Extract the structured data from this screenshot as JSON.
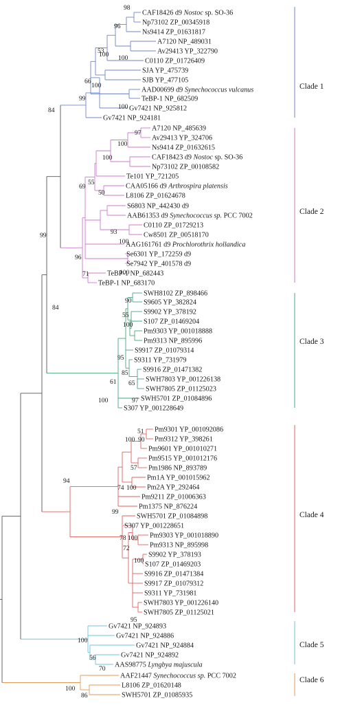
{
  "clade_colors": {
    "clade1": "#6f86c9",
    "clade2": "#cc79cf",
    "clade3": "#4aa57d",
    "clade4": "#e0605e",
    "clade5": "#6cc6e0",
    "clade6": "#e39a55",
    "backbone": "#555555"
  },
  "clades": [
    {
      "id": "clade1",
      "label": "Clade 1"
    },
    {
      "id": "clade2",
      "label": "Clade 2"
    },
    {
      "id": "clade3",
      "label": "Clade 3"
    },
    {
      "id": "clade4",
      "label": "Clade 4"
    },
    {
      "id": "clade5",
      "label": "Clade 5"
    },
    {
      "id": "clade6",
      "label": "Clade 6"
    }
  ],
  "leaves": [
    {
      "id": "L1",
      "clade": "clade1",
      "parts": [
        {
          "t": "CAF18426 d9 "
        },
        {
          "t": "Nostoc",
          "i": true
        },
        {
          "t": " sp. SO-36"
        }
      ]
    },
    {
      "id": "L2",
      "clade": "clade1",
      "parts": [
        {
          "t": "Np73102 ZP_00345918"
        }
      ]
    },
    {
      "id": "L3",
      "clade": "clade1",
      "parts": [
        {
          "t": "Ns9414 ZP_01631817"
        }
      ]
    },
    {
      "id": "L4",
      "clade": "clade1",
      "parts": [
        {
          "t": "A7120 NP_489031"
        }
      ]
    },
    {
      "id": "L5",
      "clade": "clade1",
      "parts": [
        {
          "t": "Av29413 YP_322790"
        }
      ]
    },
    {
      "id": "L6",
      "clade": "clade1",
      "parts": [
        {
          "t": "C0110 ZP_01726409"
        }
      ]
    },
    {
      "id": "L7",
      "clade": "clade1",
      "parts": [
        {
          "t": "SJA YP_475739"
        }
      ]
    },
    {
      "id": "L8",
      "clade": "clade1",
      "parts": [
        {
          "t": "SJB YP_477105"
        }
      ]
    },
    {
      "id": "L9",
      "clade": "clade1",
      "parts": [
        {
          "t": "AAD00699 d9 "
        },
        {
          "t": "Synechococcus vulcanus",
          "i": true
        }
      ]
    },
    {
      "id": "L10",
      "clade": "clade1",
      "parts": [
        {
          "t": "TeBP-1 NP_682509"
        }
      ]
    },
    {
      "id": "L11",
      "clade": "clade1",
      "parts": [
        {
          "t": "Gv7421 NP_925812"
        }
      ]
    },
    {
      "id": "L12",
      "clade": "clade1",
      "parts": [
        {
          "t": "Gv7421 NP_924181"
        }
      ]
    },
    {
      "id": "L13",
      "clade": "clade2",
      "parts": [
        {
          "t": "A7120 NP_485639"
        }
      ]
    },
    {
      "id": "L14",
      "clade": "clade2",
      "parts": [
        {
          "t": "Av29413 YP_324706"
        }
      ]
    },
    {
      "id": "L15",
      "clade": "clade2",
      "parts": [
        {
          "t": "Ns9414 ZP_01632615"
        }
      ]
    },
    {
      "id": "L16",
      "clade": "clade2",
      "parts": [
        {
          "t": "CAF18423 d9 "
        },
        {
          "t": "Nostoc",
          "i": true
        },
        {
          "t": " sp. SO-36"
        }
      ]
    },
    {
      "id": "L17",
      "clade": "clade2",
      "parts": [
        {
          "t": "Np73102 ZP_00108582"
        }
      ]
    },
    {
      "id": "L18",
      "clade": "clade2",
      "parts": [
        {
          "t": "Te101 YP_721205"
        }
      ]
    },
    {
      "id": "L19",
      "clade": "clade2",
      "parts": [
        {
          "t": "CAA05166 d9 "
        },
        {
          "t": "Arthrospira platensis",
          "i": true
        }
      ]
    },
    {
      "id": "L20",
      "clade": "clade2",
      "parts": [
        {
          "t": "L8106 ZP_01624678"
        }
      ]
    },
    {
      "id": "L21",
      "clade": "clade2",
      "parts": [
        {
          "t": "S6803 NP_442430 d9"
        }
      ]
    },
    {
      "id": "L22",
      "clade": "clade2",
      "parts": [
        {
          "t": "AAB61353 d9 "
        },
        {
          "t": "Synechococcus sp.",
          "i": true
        },
        {
          "t": " PCC 7002"
        }
      ]
    },
    {
      "id": "L23",
      "clade": "clade2",
      "parts": [
        {
          "t": "C0110 ZP_01729213"
        }
      ]
    },
    {
      "id": "L24",
      "clade": "clade2",
      "parts": [
        {
          "t": "Cw8501 ZP_00518170"
        }
      ]
    },
    {
      "id": "L25",
      "clade": "clade2",
      "parts": [
        {
          "t": "AAG161761 d9 "
        },
        {
          "t": "Prochlorothrix hollandica",
          "i": true
        }
      ]
    },
    {
      "id": "L26",
      "clade": "clade2",
      "parts": [
        {
          "t": "Se6301 YP_172259 d9"
        }
      ]
    },
    {
      "id": "L27",
      "clade": "clade2",
      "parts": [
        {
          "t": "Se7942 YP_401578 d9"
        }
      ]
    },
    {
      "id": "L28",
      "clade": "clade2",
      "parts": [
        {
          "t": "TeBP-1 NP_682443"
        }
      ]
    },
    {
      "id": "L29",
      "clade": "clade2",
      "parts": [
        {
          "t": "TeBP-1 NP_683170"
        }
      ]
    },
    {
      "id": "L30",
      "clade": "clade3",
      "parts": [
        {
          "t": "SWH8102 ZP_898466"
        }
      ]
    },
    {
      "id": "L31",
      "clade": "clade3",
      "parts": [
        {
          "t": "S9605 YP_382824"
        }
      ]
    },
    {
      "id": "L32",
      "clade": "clade3",
      "parts": [
        {
          "t": "S9902 YP_378192"
        }
      ]
    },
    {
      "id": "L33",
      "clade": "clade3",
      "parts": [
        {
          "t": "S107 ZP_01469204"
        }
      ]
    },
    {
      "id": "L34",
      "clade": "clade3",
      "parts": [
        {
          "t": "Pm9303 YP_001018888"
        }
      ]
    },
    {
      "id": "L35",
      "clade": "clade3",
      "parts": [
        {
          "t": "Pm9313 NP_895996"
        }
      ]
    },
    {
      "id": "L36",
      "clade": "clade3",
      "parts": [
        {
          "t": "S9917 ZP_01079314"
        }
      ]
    },
    {
      "id": "L37",
      "clade": "clade3",
      "parts": [
        {
          "t": "S9311 YP_731979"
        }
      ]
    },
    {
      "id": "L38",
      "clade": "clade3",
      "parts": [
        {
          "t": "S9916 ZP_01471382"
        }
      ]
    },
    {
      "id": "L39",
      "clade": "clade3",
      "parts": [
        {
          "t": "SWH7803 YP_001226138"
        }
      ]
    },
    {
      "id": "L40",
      "clade": "clade3",
      "parts": [
        {
          "t": "SWH7805 ZP_01125023"
        }
      ]
    },
    {
      "id": "L41",
      "clade": "clade3",
      "parts": [
        {
          "t": "SWH5701 ZP_01084896"
        }
      ]
    },
    {
      "id": "L42",
      "clade": "clade3",
      "parts": [
        {
          "t": "S307 YP_001228649"
        }
      ]
    },
    {
      "id": "L43",
      "clade": "clade4",
      "parts": [
        {
          "t": "Pm9301 YP_001092086"
        }
      ]
    },
    {
      "id": "L44",
      "clade": "clade4",
      "parts": [
        {
          "t": "Pm9312 YP_398261"
        }
      ]
    },
    {
      "id": "L45",
      "clade": "clade4",
      "parts": [
        {
          "t": "Pm9601 YP_001010271"
        }
      ]
    },
    {
      "id": "L46",
      "clade": "clade4",
      "parts": [
        {
          "t": "Pm9515 YP_001012176"
        }
      ]
    },
    {
      "id": "L47",
      "clade": "clade4",
      "parts": [
        {
          "t": "Pm1986 NP_893789"
        }
      ]
    },
    {
      "id": "L48",
      "clade": "clade4",
      "parts": [
        {
          "t": "Pm1A YP_001015962"
        }
      ]
    },
    {
      "id": "L49",
      "clade": "clade4",
      "parts": [
        {
          "t": "Pm2A YP_292464"
        }
      ]
    },
    {
      "id": "L50",
      "clade": "clade4",
      "parts": [
        {
          "t": "Pm9211 ZP_01006363"
        }
      ]
    },
    {
      "id": "L51",
      "clade": "clade4",
      "parts": [
        {
          "t": "Pm1375 NP_876224"
        }
      ]
    },
    {
      "id": "L52",
      "clade": "clade4",
      "parts": [
        {
          "t": "SWH5701 ZP_01084898"
        }
      ]
    },
    {
      "id": "L53",
      "clade": "clade4",
      "parts": [
        {
          "t": "S307 YP_001228651"
        }
      ]
    },
    {
      "id": "L54",
      "clade": "clade4",
      "parts": [
        {
          "t": "Pm9303 YP_001018890"
        }
      ]
    },
    {
      "id": "L55",
      "clade": "clade4",
      "parts": [
        {
          "t": "Pm9313 NP_895998"
        }
      ]
    },
    {
      "id": "L56",
      "clade": "clade4",
      "parts": [
        {
          "t": "S9902 YP_378193"
        }
      ]
    },
    {
      "id": "L57",
      "clade": "clade4",
      "parts": [
        {
          "t": "S107 ZP_01469203"
        }
      ]
    },
    {
      "id": "L58",
      "clade": "clade4",
      "parts": [
        {
          "t": "S9916 ZP_01471384"
        }
      ]
    },
    {
      "id": "L59",
      "clade": "clade4",
      "parts": [
        {
          "t": "S9917 ZP_01079312"
        }
      ]
    },
    {
      "id": "L60",
      "clade": "clade4",
      "parts": [
        {
          "t": "S9311 YP_731981"
        }
      ]
    },
    {
      "id": "L61",
      "clade": "clade4",
      "parts": [
        {
          "t": "SWH7803 YP_001226140"
        }
      ]
    },
    {
      "id": "L62",
      "clade": "clade4",
      "parts": [
        {
          "t": "SWH7805 ZP_01125021"
        }
      ]
    },
    {
      "id": "L63",
      "clade": "clade5",
      "parts": [
        {
          "t": "Gv7421 NP_924893"
        }
      ]
    },
    {
      "id": "L64",
      "clade": "clade5",
      "parts": [
        {
          "t": "Gv7421 NP_924886"
        }
      ]
    },
    {
      "id": "L65",
      "clade": "clade5",
      "parts": [
        {
          "t": "Gv7421 NP_924884"
        }
      ]
    },
    {
      "id": "L66",
      "clade": "clade5",
      "parts": [
        {
          "t": "Gv7421 NP_924892"
        }
      ]
    },
    {
      "id": "L67",
      "clade": "clade5",
      "parts": [
        {
          "t": "AAS98775 "
        },
        {
          "t": "Lyngbya majuscula",
          "i": true
        }
      ]
    },
    {
      "id": "L68",
      "clade": "clade6",
      "parts": [
        {
          "t": "AAF21447 "
        },
        {
          "t": "Synechococcus sp.",
          "i": true
        },
        {
          "t": " PCC 7002"
        }
      ]
    },
    {
      "id": "L69",
      "clade": "clade6",
      "parts": [
        {
          "t": "L8106 ZP_01620148"
        }
      ]
    },
    {
      "id": "L70",
      "clade": "clade6",
      "parts": [
        {
          "t": "SWH5701 ZP_01085935"
        }
      ]
    }
  ],
  "bootstrap_values": {
    "b1": "98",
    "b2": "96",
    "b3": "100",
    "b4": "100",
    "b5": "53",
    "b6": "100",
    "b7": "66",
    "b8": "100",
    "b9": "99",
    "b10": "84",
    "b11": "97",
    "b12": "100",
    "b13": "100",
    "b14": "55",
    "b15": "50",
    "b16": "69",
    "b17": "93",
    "b18": "100",
    "b19": "96",
    "b20": "100",
    "b21": "71",
    "b22": "99",
    "b23": "90",
    "b24": "55",
    "b25": "100",
    "b26": "95",
    "b27": "85",
    "b28": "65",
    "b29": "97",
    "b30": "61",
    "b31": "100",
    "b32": "84",
    "b33": "51",
    "b34": "90",
    "b35": "100",
    "b36": "57",
    "b37": "74",
    "b38": "100",
    "b39": "99",
    "b40": "78",
    "b41": "100",
    "b42": "72",
    "b43": "100",
    "b44": "95",
    "b45": "94",
    "b46": "100",
    "b47": "56",
    "b48": "70",
    "b49": "100",
    "b50": "86"
  }
}
